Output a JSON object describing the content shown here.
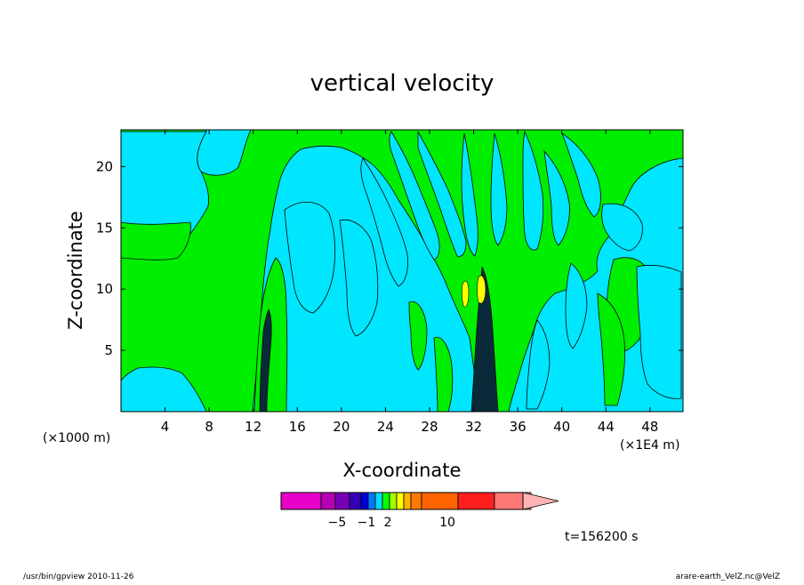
{
  "chart_data": {
    "type": "heatmap",
    "title": "vertical velocity",
    "xlabel": "X-coordinate",
    "ylabel": "Z-coordinate",
    "x_unit_left": "(×1000 m)",
    "x_unit_right": "(×1E4 m)",
    "x_ticks": [
      "4",
      "8",
      "12",
      "16",
      "20",
      "24",
      "28",
      "32",
      "36",
      "40",
      "44",
      "48"
    ],
    "y_ticks": [
      "5",
      "10",
      "15",
      "20"
    ],
    "xlim": [
      0,
      51
    ],
    "ylim": [
      0,
      23
    ],
    "background_class": "negative (cyan)",
    "colorbar": {
      "colors": [
        "#e600c8",
        "#b400b4",
        "#7800b4",
        "#3200b4",
        "#0000dc",
        "#0078ff",
        "#00dcff",
        "#00ff00",
        "#a0ff00",
        "#ffff00",
        "#ffb400",
        "#ff7800",
        "#ff6400",
        "#ff1e1e",
        "#ff7878",
        "#ffb4b4"
      ],
      "tick_labels": [
        "−5",
        "−1",
        "2",
        "10"
      ]
    },
    "time_label": "t=156200 s"
  },
  "footer": {
    "left": "/usr/bin/gpview   2010-11-26",
    "right": "arare-earth_VelZ.nc@VelZ"
  }
}
